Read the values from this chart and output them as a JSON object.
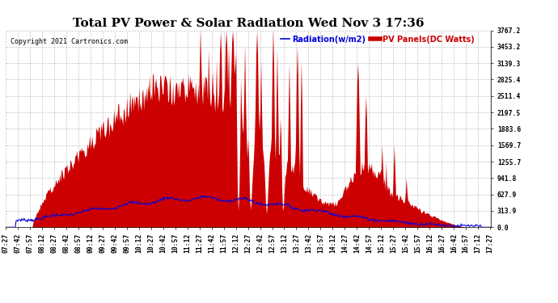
{
  "title": "Total PV Power & Solar Radiation Wed Nov 3 17:36",
  "copyright": "Copyright 2021 Cartronics.com",
  "legend_radiation": "Radiation(w/m2)",
  "legend_pv": "PV Panels(DC Watts)",
  "ymax": 3767.2,
  "ymin": 0.0,
  "yticks": [
    0.0,
    313.9,
    627.9,
    941.8,
    1255.7,
    1569.7,
    1883.6,
    2197.5,
    2511.4,
    2825.4,
    3139.3,
    3453.2,
    3767.2
  ],
  "bg_color": "#ffffff",
  "grid_color": "#aaaaaa",
  "pv_color": "#cc0000",
  "radiation_color": "#0000dd",
  "title_fontsize": 11,
  "tick_fontsize": 5.8
}
